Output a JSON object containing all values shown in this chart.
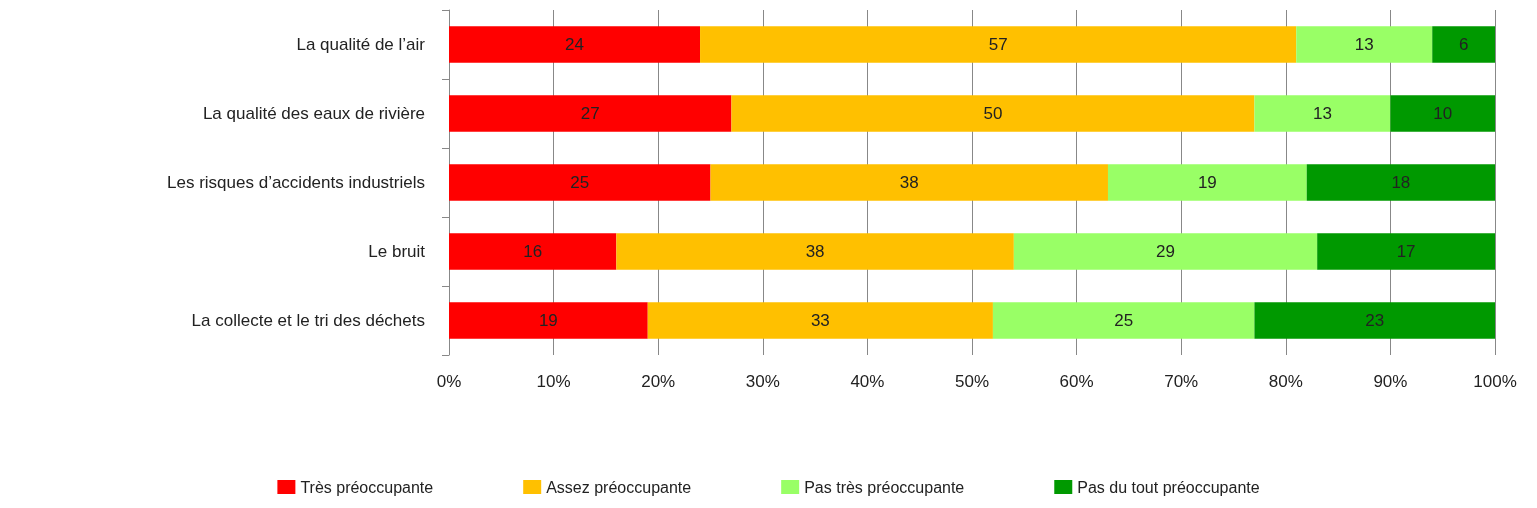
{
  "chart_data": {
    "type": "bar",
    "orientation": "horizontal",
    "stacked": true,
    "data_labels": true,
    "grid": "x",
    "legend": "bottom",
    "categories": [
      "La qualité de l’air",
      "La qualité des eaux de rivière",
      "Les risques d’accidents industriels",
      "Le bruit",
      "La collecte et le tri des déchets"
    ],
    "series": [
      {
        "name": "Très préoccupante",
        "color": "#ff0000",
        "values": [
          24,
          27,
          25,
          16,
          19
        ]
      },
      {
        "name": "Assez préoccupante",
        "color": "#ffc000",
        "values": [
          57,
          50,
          38,
          38,
          33
        ]
      },
      {
        "name": "Pas très préoccupante",
        "color": "#99ff66",
        "values": [
          13,
          13,
          19,
          29,
          25
        ]
      },
      {
        "name": "Pas du tout préoccupante",
        "color": "#009900",
        "values": [
          6,
          10,
          18,
          17,
          23
        ]
      }
    ],
    "xlim": [
      0,
      100
    ],
    "xticks": [
      {
        "value": 0,
        "label": "0%"
      },
      {
        "value": 10,
        "label": "10%"
      },
      {
        "value": 20,
        "label": "20%"
      },
      {
        "value": 30,
        "label": "30%"
      },
      {
        "value": 40,
        "label": "40%"
      },
      {
        "value": 50,
        "label": "50%"
      },
      {
        "value": 60,
        "label": "60%"
      },
      {
        "value": 70,
        "label": "70%"
      },
      {
        "value": 80,
        "label": "80%"
      },
      {
        "value": 90,
        "label": "90%"
      },
      {
        "value": 100,
        "label": "100%"
      }
    ]
  }
}
